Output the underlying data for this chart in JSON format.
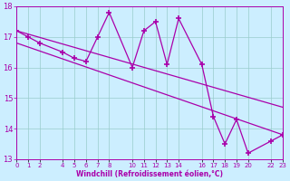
{
  "x_data": [
    0,
    1,
    2,
    4,
    5,
    6,
    7,
    8,
    10,
    11,
    12,
    13,
    14,
    16,
    17,
    18,
    19,
    20,
    22,
    23
  ],
  "y_data": [
    17.2,
    17.0,
    16.8,
    16.5,
    16.3,
    16.2,
    17.0,
    17.8,
    16.0,
    17.2,
    17.5,
    16.1,
    17.6,
    16.1,
    14.4,
    13.5,
    14.3,
    13.2,
    13.6,
    13.8
  ],
  "trend1_x": [
    0,
    23
  ],
  "trend1_y": [
    17.2,
    14.7
  ],
  "trend2_x": [
    0,
    23
  ],
  "trend2_y": [
    16.8,
    13.8
  ],
  "line_color": "#aa00aa",
  "bg_color": "#cceeff",
  "grid_color": "#99cccc",
  "xlabel": "Windchill (Refroidissement éolien,°C)",
  "xlim": [
    0,
    23
  ],
  "ylim": [
    13,
    18
  ],
  "yticks": [
    13,
    14,
    15,
    16,
    17,
    18
  ],
  "xtick_positions": [
    0,
    1,
    2,
    4,
    5,
    6,
    7,
    8,
    10,
    11,
    12,
    13,
    14,
    16,
    17,
    18,
    19,
    20,
    22,
    23
  ],
  "xtick_labels": [
    "0",
    "1",
    "2",
    "4",
    "5",
    "6",
    "7",
    "8",
    "10",
    "11",
    "12",
    "13",
    "14",
    "16",
    "17",
    "18",
    "19",
    "20",
    "22",
    "23"
  ]
}
